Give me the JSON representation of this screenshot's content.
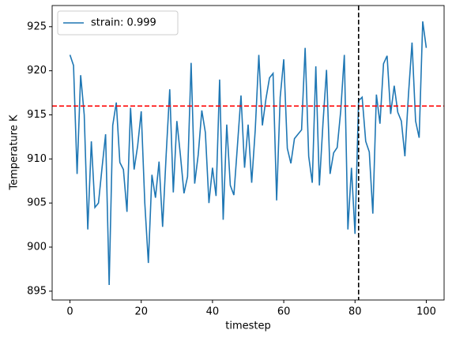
{
  "chart_data": {
    "type": "line",
    "xlabel": "timestep",
    "ylabel": "Temperature K",
    "x": [
      0,
      1,
      2,
      3,
      4,
      5,
      6,
      7,
      8,
      9,
      10,
      11,
      12,
      13,
      14,
      15,
      16,
      17,
      18,
      19,
      20,
      21,
      22,
      23,
      24,
      25,
      26,
      27,
      28,
      29,
      30,
      31,
      32,
      33,
      34,
      35,
      36,
      37,
      38,
      39,
      40,
      41,
      42,
      43,
      44,
      45,
      46,
      47,
      48,
      49,
      50,
      51,
      52,
      53,
      54,
      55,
      56,
      57,
      58,
      59,
      60,
      61,
      62,
      63,
      64,
      65,
      66,
      67,
      68,
      69,
      70,
      71,
      72,
      73,
      74,
      75,
      76,
      77,
      78,
      79,
      80,
      81,
      82,
      83,
      84,
      85,
      86,
      87,
      88,
      89,
      90,
      91,
      92,
      93,
      94,
      95,
      96,
      97,
      98,
      99,
      100
    ],
    "series": [
      {
        "name": "strain: 0.999",
        "color": "#1f77b4",
        "values": [
          921.8,
          920.6,
          908.3,
          919.5,
          915.0,
          902.0,
          912.0,
          904.5,
          905.0,
          909.0,
          912.8,
          895.7,
          913.8,
          916.4,
          909.6,
          908.8,
          904.0,
          915.8,
          908.8,
          911.5,
          915.4,
          905.0,
          898.2,
          908.2,
          905.6,
          909.7,
          902.3,
          910.5,
          917.9,
          906.2,
          914.3,
          910.4,
          906.1,
          908.0,
          920.9,
          907.2,
          910.5,
          915.5,
          913.0,
          905.0,
          909.0,
          905.8,
          919.0,
          903.1,
          913.9,
          907.0,
          905.9,
          911.5,
          917.2,
          909.0,
          913.9,
          907.3,
          913.3,
          921.8,
          913.8,
          916.8,
          919.2,
          919.7,
          905.3,
          917.0,
          921.3,
          911.2,
          909.5,
          912.3,
          912.8,
          913.3,
          922.6,
          910.3,
          907.3,
          920.5,
          907.0,
          914.0,
          920.1,
          908.3,
          910.7,
          911.3,
          915.5,
          921.8,
          902.0,
          909.0,
          901.5,
          916.6,
          917.0,
          912.0,
          910.8,
          903.8,
          917.3,
          914.0,
          920.8,
          921.7,
          915.1,
          918.3,
          915.3,
          914.3,
          910.3,
          917.3,
          923.2,
          914.3,
          912.4,
          925.6,
          922.6
        ]
      }
    ],
    "reference_lines": [
      {
        "axis": "y",
        "value": 916,
        "color": "#ff0000"
      },
      {
        "axis": "x",
        "value": 81,
        "color": "#000000"
      }
    ],
    "xlim": [
      -5,
      105
    ],
    "ylim": [
      894.0,
      927.4
    ],
    "xticks": [
      0,
      20,
      40,
      60,
      80,
      100
    ],
    "yticks": [
      895,
      900,
      905,
      910,
      915,
      920,
      925
    ],
    "legend": "upper left"
  }
}
